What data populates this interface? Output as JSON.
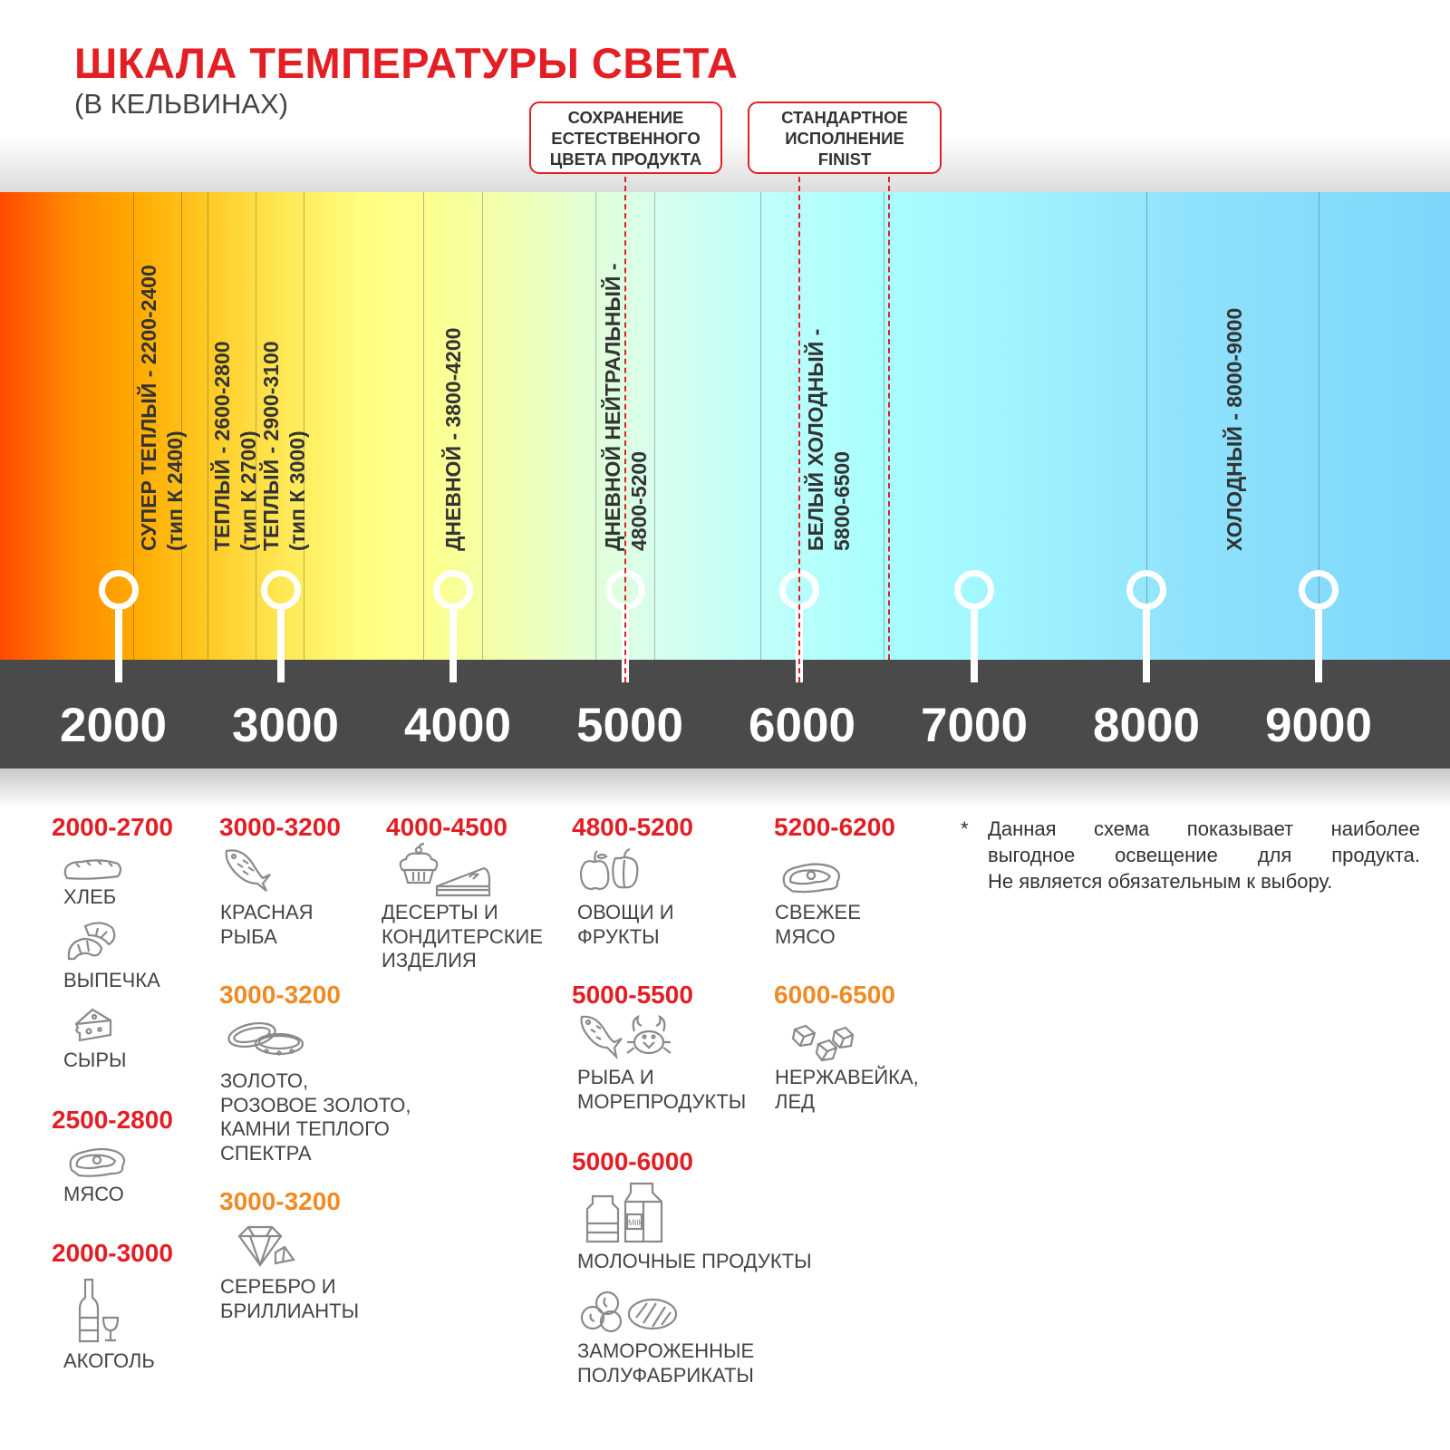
{
  "header": {
    "title": "ШКАЛА ТЕМПЕРАТУРЫ СВЕТА",
    "subtitle": "(В КЕЛЬВИНАХ)"
  },
  "callouts": [
    {
      "text": "СОХРАНЕНИЕ\nЕСТЕСТВЕННОГО\nЦВЕТА ПРОДУКТА"
    },
    {
      "text": "СТАНДАРТНОЕ\nИСПОЛНЕНИЕ\nFINIST"
    }
  ],
  "colors": {
    "accent_red": "#e31e24",
    "accent_orange": "#f08a24",
    "scale_bar": "#4a4a4a",
    "spectrum_warm": "#ff4a00",
    "spectrum_cool": "#7dd6fb"
  },
  "scale": {
    "ticks": [
      "2000",
      "3000",
      "4000",
      "5000",
      "6000",
      "7000",
      "8000",
      "9000"
    ],
    "bands": [
      {
        "text": "СУПЕР ТЕПЛЫЙ - 2200-2400\n(тип К 2400)"
      },
      {
        "text": "ТЕПЛЫЙ - 2600-2800\n(тип К 2700)"
      },
      {
        "text": "ТЕПЛЫЙ - 2900-3100\n(тип К 3000)"
      },
      {
        "text": "ДНЕВНОЙ - 3800-4200"
      },
      {
        "text": "ДНЕВНОЙ НЕЙТРАЛЬНЫЙ -\n4800-5200"
      },
      {
        "text": "БЕЛЫЙ ХОЛОДНЫЙ -\n5800-6500"
      },
      {
        "text": "ХОЛОДНЫЙ - 8000-9000"
      }
    ]
  },
  "products": [
    {
      "range": "2000-2700",
      "color": "red",
      "items": [
        {
          "label": "ХЛЕБ",
          "icon": "bread-icon"
        },
        {
          "label": "ВЫПЕЧКА",
          "icon": "croissant-icon"
        },
        {
          "label": "СЫРЫ",
          "icon": "cheese-icon"
        }
      ]
    },
    {
      "range": "2500-2800",
      "color": "red",
      "items": [
        {
          "label": "МЯСО",
          "icon": "steak-icon"
        }
      ]
    },
    {
      "range": "2000-3000",
      "color": "red",
      "items": [
        {
          "label": "АКОГОЛЬ",
          "icon": "bottle-glass-icon"
        }
      ]
    },
    {
      "range": "3000-3200",
      "color": "red",
      "items": [
        {
          "label": "КРАСНАЯ\nРЫБА",
          "icon": "fish-icon"
        }
      ]
    },
    {
      "range": "3000-3200",
      "color": "orange",
      "items": [
        {
          "label": "ЗОЛОТО,\nРОЗОВОЕ ЗОЛОТО,\nКАМНИ ТЕПЛОГО\nСПЕКТРА",
          "icon": "rings-icon"
        }
      ]
    },
    {
      "range": "3000-3200",
      "color": "orange",
      "items": [
        {
          "label": "СЕРЕБРО И\nБРИЛЛИАНТЫ",
          "icon": "diamond-icon"
        }
      ]
    },
    {
      "range": "4000-4500",
      "color": "red",
      "items": [
        {
          "label": "ДЕСЕРТЫ И\nКОНДИТЕРСКИЕ\nИЗДЕЛИЯ",
          "icon": "cupcake-cake-icon"
        }
      ]
    },
    {
      "range": "4800-5200",
      "color": "red",
      "items": [
        {
          "label": "ОВОЩИ И\nФРУКТЫ",
          "icon": "apple-pepper-icon"
        }
      ]
    },
    {
      "range": "5000-5500",
      "color": "red",
      "items": [
        {
          "label": "РЫБА И\nМОРЕПРОДУКТЫ",
          "icon": "fish-crab-icon"
        }
      ]
    },
    {
      "range": "5000-6000",
      "color": "red",
      "items": [
        {
          "label": "МОЛОЧНЫЕ ПРОДУКТЫ",
          "icon": "milk-icon",
          "icon_text": "Milk"
        },
        {
          "label": "ЗАМОРОЖЕННЫЕ\nПОЛУФАБРИКАТЫ",
          "icon": "frozen-food-icon"
        }
      ]
    },
    {
      "range": "5200-6200",
      "color": "red",
      "items": [
        {
          "label": "СВЕЖЕЕ\nМЯСО",
          "icon": "steak-icon"
        }
      ]
    },
    {
      "range": "6000-6500",
      "color": "orange",
      "items": [
        {
          "label": "НЕРЖАВЕЙКА,\nЛЕД",
          "icon": "ice-cubes-icon"
        }
      ]
    }
  ],
  "note": {
    "marker": "*",
    "lines": [
      "Данная схема показывает наиболее",
      "выгодное освещение для продукта.",
      "Не является обязательным к выбору."
    ]
  }
}
